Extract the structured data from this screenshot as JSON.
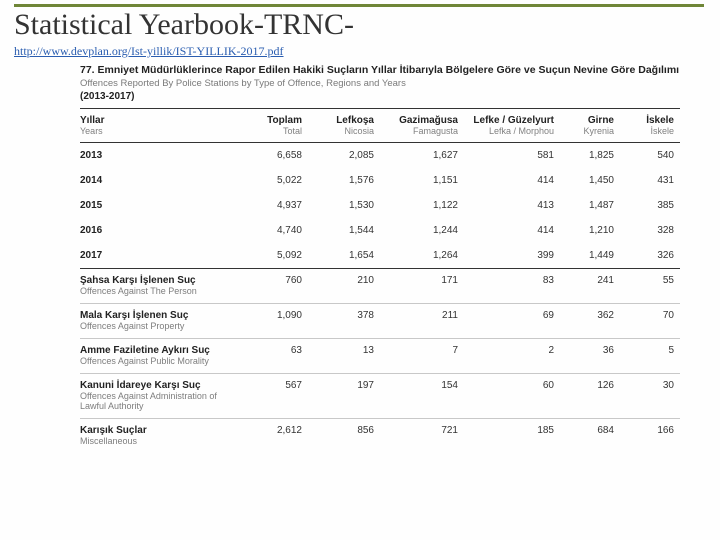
{
  "accent_color": "#6f8637",
  "title": "Statistical Yearbook-TRNC-",
  "source_url": "http://www.devplan.org/Ist-yillik/IST-YILLIK-2017.pdf",
  "table": {
    "heading_tr": "77. Emniyet Müdürlüklerince Rapor Edilen Hakiki Suçların Yıllar İtibarıyla Bölgelere Göre ve Suçun Nevine Göre Dağılımı",
    "heading_en": "Offences Reported By Police Stations by Type of Offence, Regions and Years",
    "years_range": "(2013-2017)",
    "columns": [
      {
        "tr": "Yıllar",
        "en": "Years"
      },
      {
        "tr": "Toplam",
        "en": "Total"
      },
      {
        "tr": "Lefkoşa",
        "en": "Nicosia"
      },
      {
        "tr": "Gazimağusa",
        "en": "Famagusta"
      },
      {
        "tr": "Lefke / Güzelyurt",
        "en": "Lefka / Morphou"
      },
      {
        "tr": "Girne",
        "en": "Kyrenia"
      },
      {
        "tr": "İskele",
        "en": "İskele"
      }
    ],
    "year_rows": [
      {
        "label": "2013",
        "vals": [
          "6,658",
          "2,085",
          "1,627",
          "581",
          "1,825",
          "540"
        ]
      },
      {
        "label": "2014",
        "vals": [
          "5,022",
          "1,576",
          "1,151",
          "414",
          "1,450",
          "431"
        ]
      },
      {
        "label": "2015",
        "vals": [
          "4,937",
          "1,530",
          "1,122",
          "413",
          "1,487",
          "385"
        ]
      },
      {
        "label": "2016",
        "vals": [
          "4,740",
          "1,544",
          "1,244",
          "414",
          "1,210",
          "328"
        ]
      },
      {
        "label": "2017",
        "vals": [
          "5,092",
          "1,654",
          "1,264",
          "399",
          "1,449",
          "326"
        ]
      }
    ],
    "category_rows": [
      {
        "tr": "Şahsa Karşı İşlenen Suç",
        "en": "Offences Against The Person",
        "vals": [
          "760",
          "210",
          "171",
          "83",
          "241",
          "55"
        ]
      },
      {
        "tr": "Mala Karşı İşlenen Suç",
        "en": "Offences Against Property",
        "vals": [
          "1,090",
          "378",
          "211",
          "69",
          "362",
          "70"
        ]
      },
      {
        "tr": "Amme Faziletine Aykırı Suç",
        "en": "Offences Against Public Morality",
        "vals": [
          "63",
          "13",
          "7",
          "2",
          "36",
          "5"
        ]
      },
      {
        "tr": "Kanuni İdareye Karşı Suç",
        "en": "Offences Against Administration of Lawful Authority",
        "vals": [
          "567",
          "197",
          "154",
          "60",
          "126",
          "30"
        ]
      },
      {
        "tr": "Karışık Suçlar",
        "en": "Miscellaneous",
        "vals": [
          "2,612",
          "856",
          "721",
          "185",
          "684",
          "166"
        ]
      }
    ],
    "col_widths": [
      "26%",
      "12%",
      "12%",
      "14%",
      "16%",
      "10%",
      "10%"
    ]
  }
}
